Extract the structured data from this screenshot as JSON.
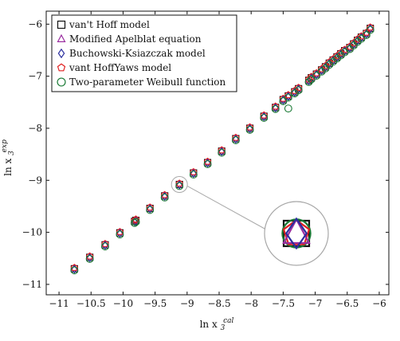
{
  "chart_data": {
    "type": "scatter",
    "title": "",
    "xlabel": "ln x",
    "xlabel_sub": "3",
    "xlabel_sup": "cal",
    "ylabel": "ln x",
    "ylabel_sub": "3",
    "ylabel_sup": "exp",
    "xlim": [
      -11.2,
      -5.85
    ],
    "ylim": [
      -11.2,
      -5.75
    ],
    "xticks": [
      -11,
      -10.5,
      -10,
      -9.5,
      -9,
      -8.5,
      -8,
      -7.5,
      -7,
      -6.5,
      -6
    ],
    "xtick_labels": [
      "−11",
      "−10.5",
      "−10",
      "−9.5",
      "−9",
      "−8.5",
      "−8",
      "−7.5",
      "−7",
      "−6.5",
      "−6"
    ],
    "yticks": [
      -11,
      -10,
      -9,
      -8,
      -7,
      -6
    ],
    "ytick_labels": [
      "−11",
      "−10",
      "−9",
      "−8",
      "−7",
      "−6"
    ],
    "grid": false,
    "legend_position": "top-left",
    "series": [
      {
        "name": "van't Hoff model",
        "marker": "square",
        "color": "#111111",
        "offset": 0
      },
      {
        "name": "Modified Apelblat equation",
        "marker": "triangle",
        "color": "#9b2fa0",
        "offset": 0.01
      },
      {
        "name": "Buchowski-Ksiazczak model",
        "marker": "diamond",
        "color": "#2b2f9e",
        "offset": -0.01
      },
      {
        "name": "vant HoffYaws model",
        "marker": "pentagon",
        "color": "#e02020",
        "offset": 0.02
      },
      {
        "name": "Two-parameter Weibull function",
        "marker": "circle",
        "color": "#1a7a35",
        "offset": -0.03
      }
    ],
    "points": [
      [
        -10.76,
        -10.7
      ],
      [
        -10.52,
        -10.48
      ],
      [
        -10.28,
        -10.24
      ],
      [
        -10.05,
        -10.01
      ],
      [
        -9.82,
        -9.79
      ],
      [
        -9.8,
        -9.77
      ],
      [
        -9.58,
        -9.54
      ],
      [
        -9.35,
        -9.3
      ],
      [
        -9.12,
        -9.08
      ],
      [
        -8.9,
        -8.86
      ],
      [
        -8.68,
        -8.66
      ],
      [
        -8.46,
        -8.44
      ],
      [
        -8.24,
        -8.2
      ],
      [
        -8.02,
        -8.0
      ],
      [
        -7.8,
        -7.77
      ],
      [
        -7.62,
        -7.6
      ],
      [
        -7.5,
        -7.45
      ],
      [
        -7.42,
        -7.38
      ],
      [
        -7.32,
        -7.3
      ],
      [
        -7.26,
        -7.24
      ],
      [
        -7.1,
        -7.08
      ],
      [
        -7.06,
        -7.03
      ],
      [
        -6.98,
        -6.96
      ],
      [
        -6.9,
        -6.88
      ],
      [
        -6.84,
        -6.82
      ],
      [
        -6.78,
        -6.75
      ],
      [
        -6.72,
        -6.69
      ],
      [
        -6.66,
        -6.63
      ],
      [
        -6.6,
        -6.57
      ],
      [
        -6.54,
        -6.51
      ],
      [
        -6.46,
        -6.45
      ],
      [
        -6.4,
        -6.38
      ],
      [
        -6.34,
        -6.31
      ],
      [
        -6.28,
        -6.25
      ],
      [
        -6.2,
        -6.18
      ],
      [
        -6.14,
        -6.08
      ]
    ],
    "weibull_outlier": [
      -7.42,
      -7.62
    ],
    "zoom": {
      "center": [
        -9.12,
        -9.08
      ],
      "shapes": [
        "square",
        "circle",
        "pentagon",
        "triangle",
        "diamond"
      ]
    }
  }
}
